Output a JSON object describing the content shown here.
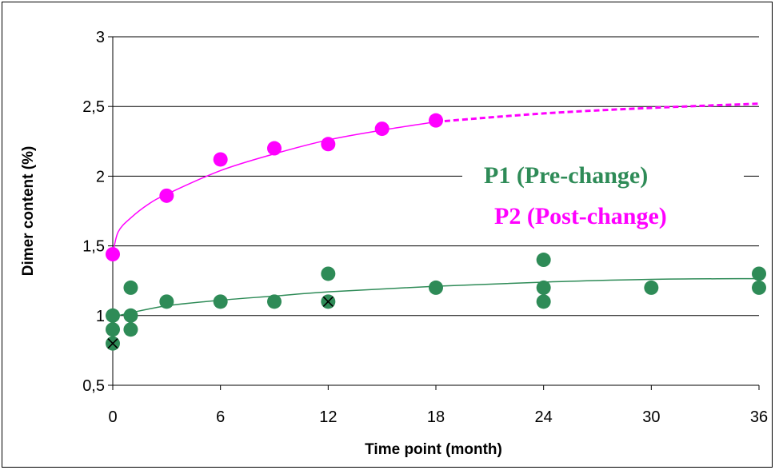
{
  "chart_data": {
    "type": "scatter",
    "xlabel": "Time point (month)",
    "ylabel": "Dimer content (%)",
    "xlim": [
      0,
      36
    ],
    "ylim": [
      0.5,
      3
    ],
    "x_ticks": [
      "0",
      "6",
      "12",
      "18",
      "24",
      "30",
      "36"
    ],
    "y_ticks": [
      "0,5",
      "1",
      "1,5",
      "2",
      "2,5",
      "3"
    ],
    "grid": "horizontal",
    "legend_position": "center-right",
    "series": [
      {
        "name": "P1 (Pre-change)",
        "color": "#2e8b57",
        "points": [
          {
            "x": 0,
            "y": 1.0
          },
          {
            "x": 0,
            "y": 0.9
          },
          {
            "x": 0,
            "y": 0.8,
            "marker": "x"
          },
          {
            "x": 1,
            "y": 1.2
          },
          {
            "x": 1,
            "y": 1.0
          },
          {
            "x": 1,
            "y": 0.9
          },
          {
            "x": 3,
            "y": 1.1
          },
          {
            "x": 6,
            "y": 1.1
          },
          {
            "x": 9,
            "y": 1.1
          },
          {
            "x": 12,
            "y": 1.3
          },
          {
            "x": 12,
            "y": 1.1,
            "marker": "x"
          },
          {
            "x": 18,
            "y": 1.2
          },
          {
            "x": 24,
            "y": 1.4
          },
          {
            "x": 24,
            "y": 1.2
          },
          {
            "x": 24,
            "y": 1.1
          },
          {
            "x": 30,
            "y": 1.2
          },
          {
            "x": 36,
            "y": 1.3
          },
          {
            "x": 36,
            "y": 1.2
          }
        ],
        "trend": [
          {
            "x": 0,
            "y": 0.99
          },
          {
            "x": 1,
            "y": 1.02
          },
          {
            "x": 3,
            "y": 1.07
          },
          {
            "x": 6,
            "y": 1.11
          },
          {
            "x": 9,
            "y": 1.14
          },
          {
            "x": 12,
            "y": 1.17
          },
          {
            "x": 18,
            "y": 1.21
          },
          {
            "x": 24,
            "y": 1.24
          },
          {
            "x": 30,
            "y": 1.26
          },
          {
            "x": 36,
            "y": 1.265
          }
        ]
      },
      {
        "name": "P2 (Post-change)",
        "color": "#ff00ff",
        "points": [
          {
            "x": 0,
            "y": 1.44
          },
          {
            "x": 3,
            "y": 1.86
          },
          {
            "x": 6,
            "y": 2.12
          },
          {
            "x": 9,
            "y": 2.2
          },
          {
            "x": 12,
            "y": 2.23
          },
          {
            "x": 15,
            "y": 2.34
          },
          {
            "x": 18,
            "y": 2.4
          }
        ],
        "trend": [
          {
            "x": 0,
            "y": 1.44
          },
          {
            "x": 0.3,
            "y": 1.6
          },
          {
            "x": 1,
            "y": 1.7
          },
          {
            "x": 2,
            "y": 1.8
          },
          {
            "x": 3,
            "y": 1.87
          },
          {
            "x": 6,
            "y": 2.04
          },
          {
            "x": 9,
            "y": 2.16
          },
          {
            "x": 12,
            "y": 2.26
          },
          {
            "x": 15,
            "y": 2.33
          },
          {
            "x": 18,
            "y": 2.39
          }
        ],
        "trend_extrapolated": [
          {
            "x": 18,
            "y": 2.39
          },
          {
            "x": 24,
            "y": 2.45
          },
          {
            "x": 30,
            "y": 2.49
          },
          {
            "x": 36,
            "y": 2.52
          }
        ]
      }
    ]
  }
}
